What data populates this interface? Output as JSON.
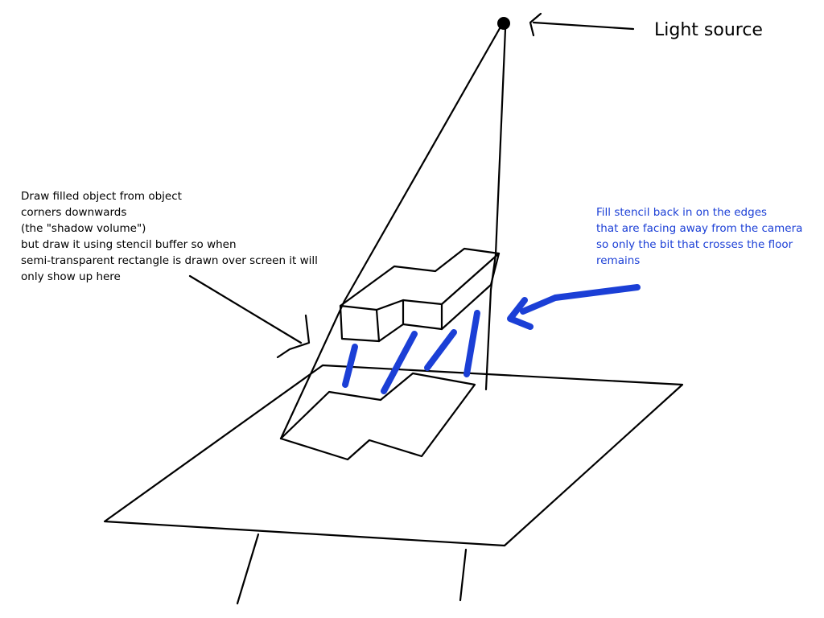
{
  "light_source_label": "Light source",
  "left_note": {
    "lines": [
      "Draw filled object from object",
      "corners downwards",
      "(the \"shadow volume\")",
      "but draw it using stencil buffer so when",
      "semi-transparent rectangle is drawn over screen it will",
      "only show up here"
    ]
  },
  "right_note": {
    "lines": [
      "Fill stencil back in on the edges",
      "that are facing away from the camera",
      "so only the bit that crosses the floor",
      "remains"
    ]
  },
  "colors": {
    "ink": "#000000",
    "annotation_blue": "#1b3fd6",
    "background": "#ffffff"
  }
}
